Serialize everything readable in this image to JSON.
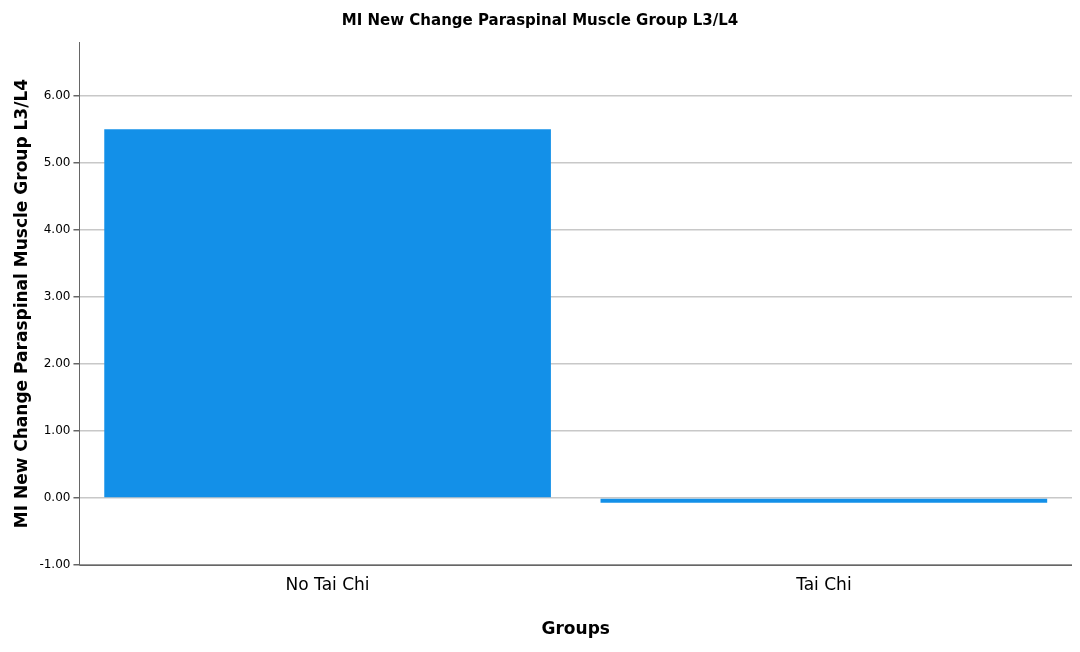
{
  "chart_data": {
    "type": "bar",
    "title": "MI New Change Paraspinal Muscle Group L3/L4",
    "xlabel": "Groups",
    "ylabel": "MI New Change Paraspinal Muscle Group L3/L4",
    "categories": [
      "No Tai Chi",
      "Tai Chi"
    ],
    "values": [
      5.5,
      -0.07
    ],
    "color": "#1390e8",
    "ylim": [
      -1,
      6.8
    ],
    "yticks": [
      {
        "value": -1,
        "label": "-1.00"
      },
      {
        "value": 0,
        "label": "0.00"
      },
      {
        "value": 1,
        "label": "1.00"
      },
      {
        "value": 2,
        "label": "2.00"
      },
      {
        "value": 3,
        "label": "3.00"
      },
      {
        "value": 4,
        "label": "4.00"
      },
      {
        "value": 5,
        "label": "5.00"
      },
      {
        "value": 6,
        "label": "6.00"
      }
    ],
    "grid": "y"
  }
}
